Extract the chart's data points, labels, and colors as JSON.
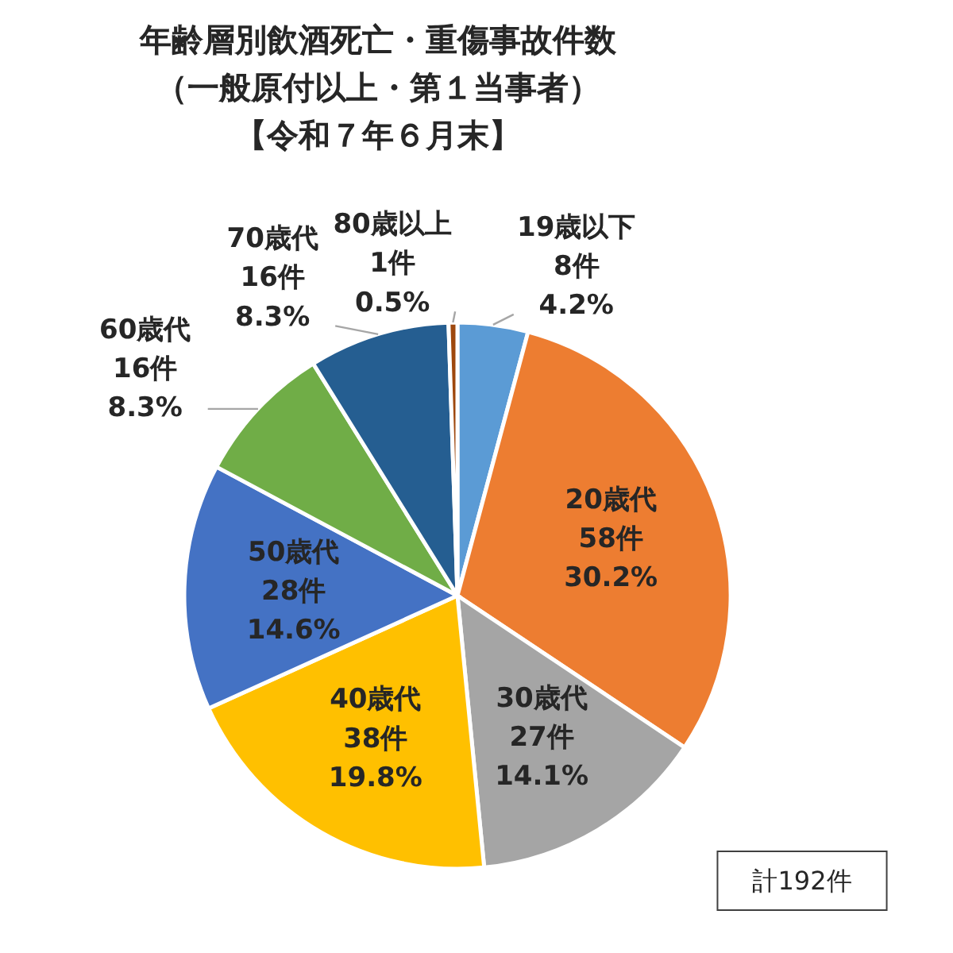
{
  "chart_data": {
    "type": "pie",
    "title": "年齢層別飲酒死亡・重傷事故件数",
    "subtitle": "（一般原付以上・第１当事者）【令和７年６月末】",
    "categories": [
      "19歳以下",
      "20歳代",
      "30歳代",
      "40歳代",
      "50歳代",
      "60歳代",
      "70歳代",
      "80歳以上"
    ],
    "values": [
      8,
      58,
      27,
      38,
      28,
      16,
      16,
      1
    ],
    "colors": [
      "#5b9bd5",
      "#ed7d31",
      "#a5a5a5",
      "#ffc000",
      "#4472c4",
      "#70ad47",
      "#255e91",
      "#9e480e"
    ],
    "value_labels": [
      "8件\n4.2%",
      "58件\n30.2%",
      "27件\n14.1%",
      "38件\n19.8%",
      "28件\n14.6%",
      "16件\n8.3%",
      "16件\n8.3%",
      "1件\n0.5%"
    ],
    "annotations": [
      "計192件"
    ]
  }
}
